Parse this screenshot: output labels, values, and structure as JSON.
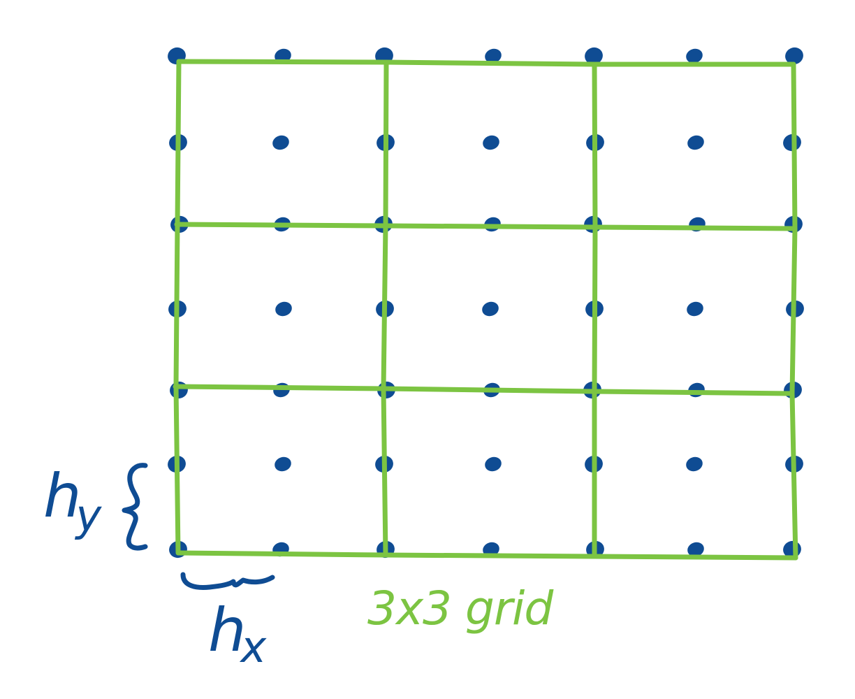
{
  "diagram": {
    "grid_caption": "3x3 grid",
    "hy_label": {
      "base": "h",
      "subscript": "y"
    },
    "hx_label": {
      "base": "h",
      "subscript": "x"
    },
    "grid_cells": {
      "rows": 3,
      "cols": 3
    },
    "points": {
      "rows": 7,
      "cols": 7
    },
    "colors": {
      "points": "#0f4c93",
      "grid": "#7cc442",
      "labels": "#0f4c93",
      "caption": "#7cc442"
    }
  }
}
